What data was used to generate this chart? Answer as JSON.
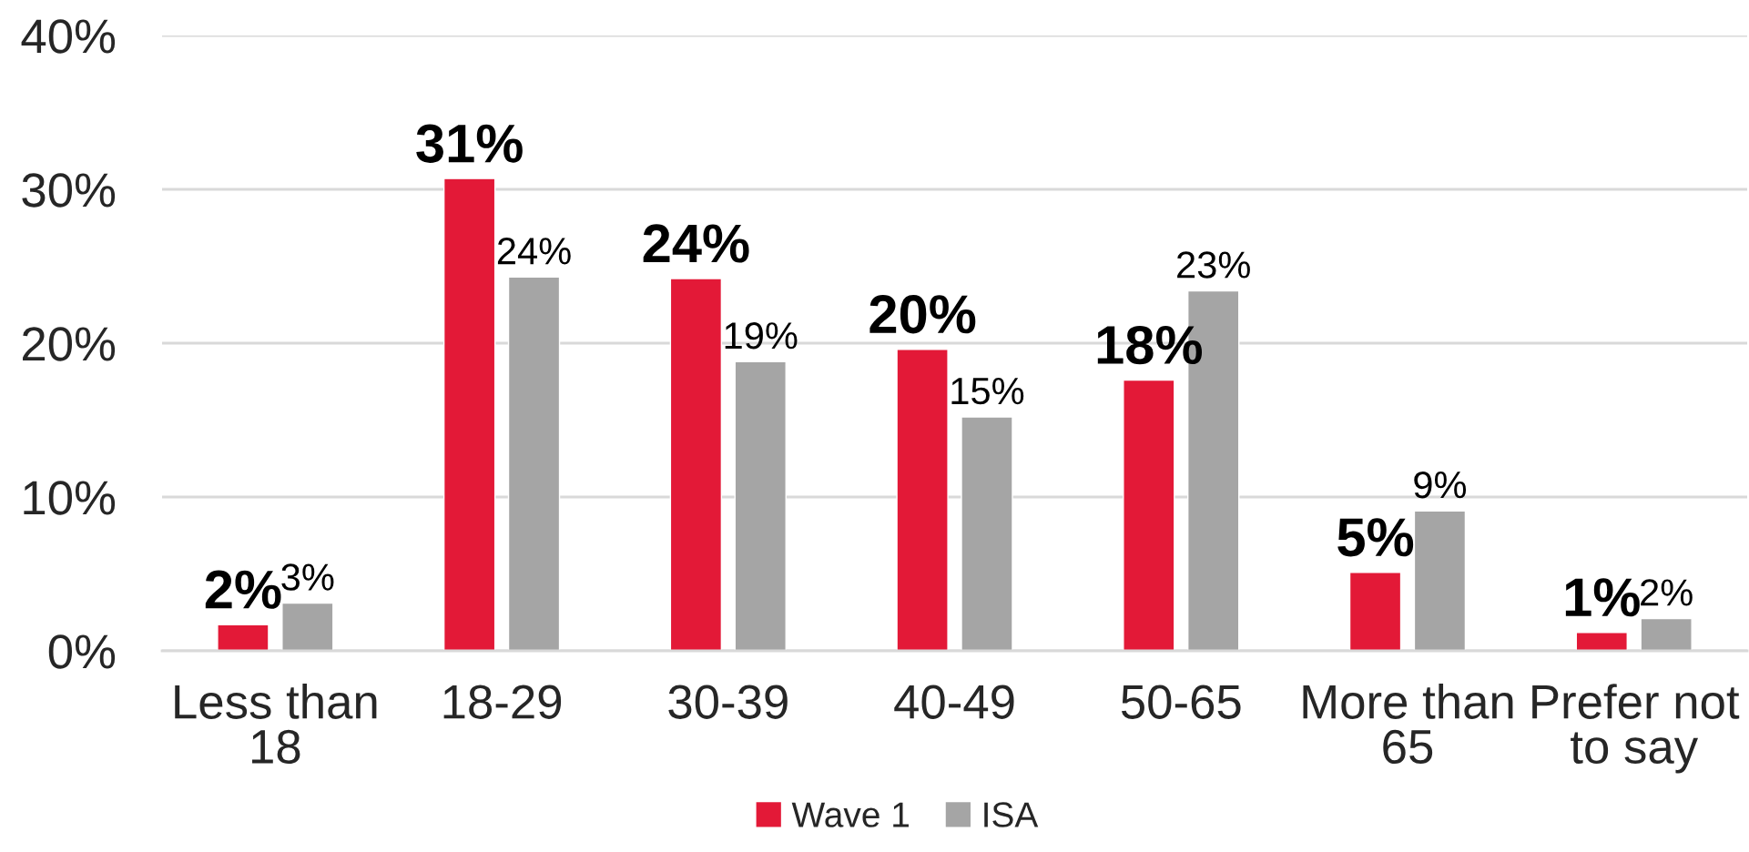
{
  "chart_data": {
    "type": "bar",
    "categories": [
      "Less than\n18",
      "18-29",
      "30-39",
      "40-49",
      "50-65",
      "More than\n65",
      "Prefer not\nto say"
    ],
    "series": [
      {
        "name": "Wave 1",
        "color": "#e31937",
        "values": [
          1.7,
          30.7,
          24.2,
          19.6,
          17.6,
          5.1,
          1.2
        ],
        "value_labels": [
          "2%",
          "31%",
          "24%",
          "20%",
          "18%",
          "5%",
          "1%"
        ]
      },
      {
        "name": "ISA",
        "color": "#a5a5a5",
        "values": [
          3.1,
          24.3,
          18.8,
          15.2,
          23.4,
          9.1,
          2.1
        ],
        "value_labels": [
          "3%",
          "24%",
          "19%",
          "15%",
          "23%",
          "9%",
          "2%"
        ]
      }
    ],
    "ylim": [
      0,
      40
    ],
    "yticks": [
      {
        "value": 0,
        "label": "0%"
      },
      {
        "value": 10,
        "label": "10%"
      },
      {
        "value": 20,
        "label": "20%"
      },
      {
        "value": 30,
        "label": "30%"
      },
      {
        "value": 40,
        "label": "40%"
      }
    ],
    "grid": "y",
    "legend": "bottom"
  }
}
